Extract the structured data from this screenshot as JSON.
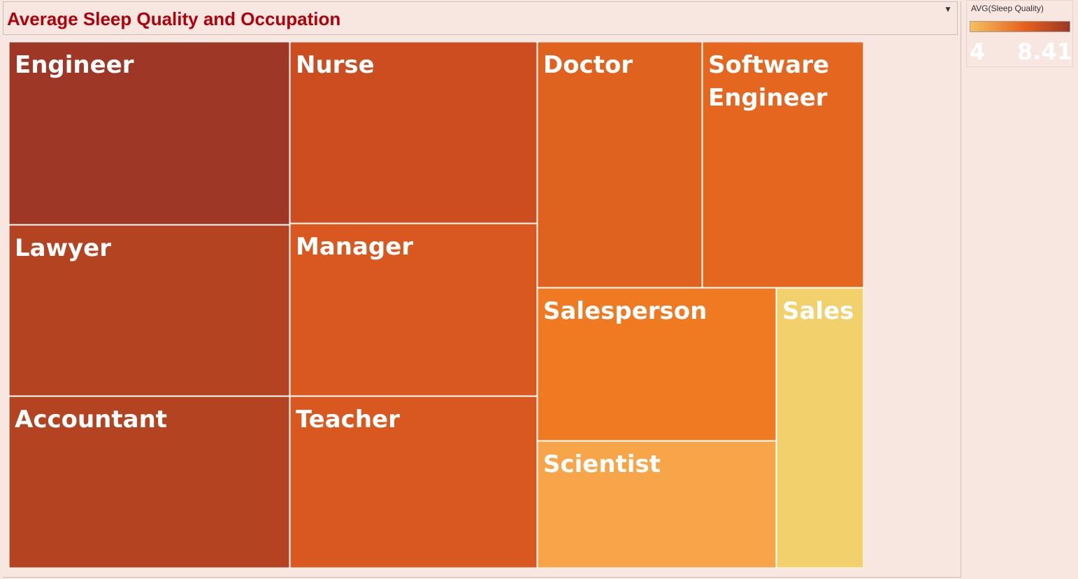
{
  "title": "Average Sleep Quality and Occupation",
  "title_menu_icon": "dropdown-caret-icon",
  "legend": {
    "title": "AVG(Sleep Quality)",
    "min_label": "4",
    "max_label": "8.413",
    "color_low": "#f5c060",
    "color_mid": "#e8601c",
    "color_high": "#9e3626"
  },
  "chart_data": {
    "type": "treemap",
    "title": "Average Sleep Quality and Occupation",
    "color_measure": "AVG(Sleep Quality)",
    "color_range": [
      4,
      8.413
    ],
    "items": [
      {
        "label": "Engineer",
        "color": "#9e3726",
        "size_rank": 1
      },
      {
        "label": "Lawyer",
        "color": "#b44421",
        "size_rank": 2
      },
      {
        "label": "Accountant",
        "color": "#b44421",
        "size_rank": 3
      },
      {
        "label": "Nurse",
        "color": "#cb4d20",
        "size_rank": 4
      },
      {
        "label": "Manager",
        "color": "#d9581f",
        "size_rank": 5
      },
      {
        "label": "Teacher",
        "color": "#d9581f",
        "size_rank": 6
      },
      {
        "label": "Doctor",
        "color": "#e0621f",
        "size_rank": 7
      },
      {
        "label": "Software Engineer",
        "color": "#e5661f",
        "size_rank": 8
      },
      {
        "label": "Salesperson",
        "color": "#f07a22",
        "size_rank": 9
      },
      {
        "label": "Scientist",
        "color": "#f7a548",
        "size_rank": 10
      },
      {
        "label": "Sales",
        "color": "#f2d06b",
        "size_rank": 11
      }
    ]
  }
}
